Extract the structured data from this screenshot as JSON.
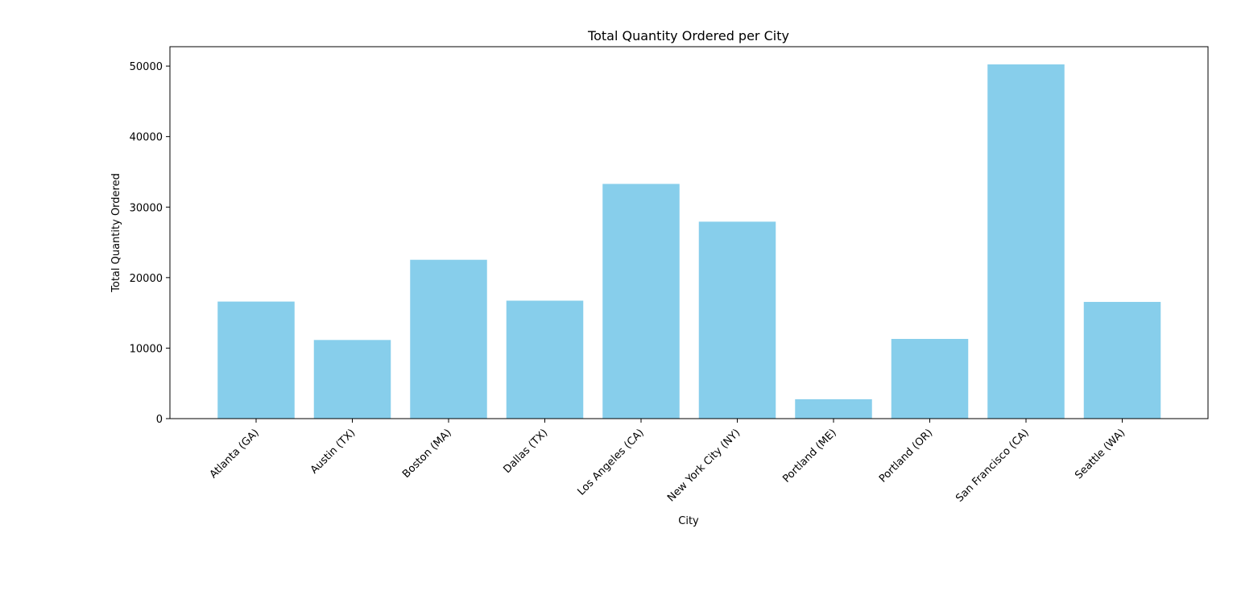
{
  "chart_data": {
    "type": "bar",
    "title": "Total Quantity Ordered per City",
    "xlabel": "City",
    "ylabel": "Total Quantity Ordered",
    "categories": [
      "Atlanta  (GA)",
      "Austin  (TX)",
      "Boston  (MA)",
      "Dallas  (TX)",
      "Los Angeles  (CA)",
      "New York City  (NY)",
      "Portland  (ME)",
      "Portland  (OR)",
      "San Francisco  (CA)",
      "Seattle  (WA)"
    ],
    "values": [
      16602,
      11153,
      22528,
      16730,
      33289,
      27932,
      2750,
      11303,
      50239,
      16553
    ],
    "ylim": [
      0,
      52750
    ],
    "yticks": [
      0,
      10000,
      20000,
      30000,
      40000,
      50000
    ],
    "bar_color": "#87CEEB",
    "grid": false,
    "legend": "none"
  }
}
